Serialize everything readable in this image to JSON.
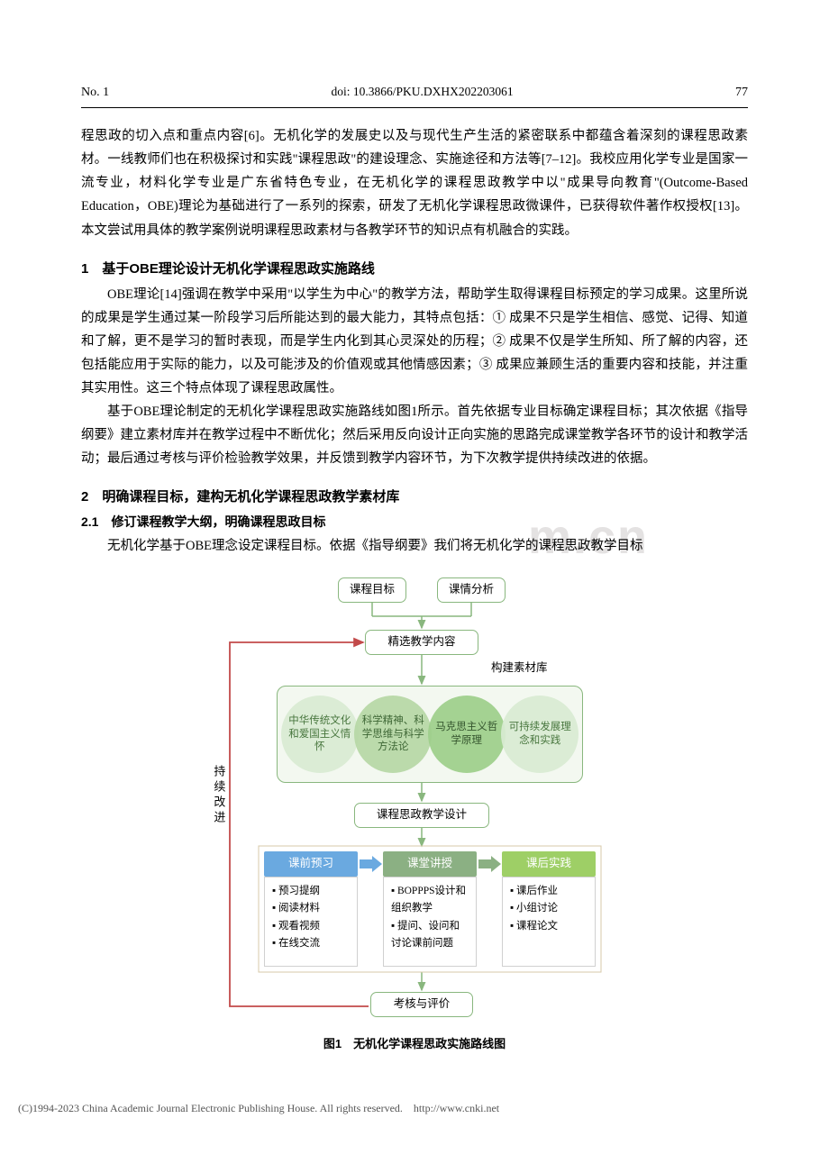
{
  "header": {
    "issue": "No. 1",
    "doi": "doi: 10.3866/PKU.DXHX202203061",
    "page": "77"
  },
  "watermark": "m.cn",
  "para1": "程思政的切入点和重点内容[6]。无机化学的发展史以及与现代生产生活的紧密联系中都蕴含着深刻的课程思政素材。一线教师们也在积极探讨和实践\"课程思政\"的建设理念、实施途径和方法等[7–12]。我校应用化学专业是国家一流专业，材料化学专业是广东省特色专业，在无机化学的课程思政教学中以\"成果导向教育\"(Outcome-Based Education，OBE)理论为基础进行了一系列的探索，研发了无机化学课程思政微课件，已获得软件著作权授权[13]。本文尝试用具体的教学案例说明课程思政素材与各教学环节的知识点有机融合的实践。",
  "section1": {
    "title": "1　基于OBE理论设计无机化学课程思政实施路线",
    "p1": "OBE理论[14]强调在教学中采用\"以学生为中心\"的教学方法，帮助学生取得课程目标预定的学习成果。这里所说的成果是学生通过某一阶段学习后所能达到的最大能力，其特点包括：① 成果不只是学生相信、感觉、记得、知道和了解，更不是学习的暂时表现，而是学生内化到其心灵深处的历程；② 成果不仅是学生所知、所了解的内容，还包括能应用于实际的能力，以及可能涉及的价值观或其他情感因素；③ 成果应兼顾生活的重要内容和技能，并注重其实用性。这三个特点体现了课程思政属性。",
    "p2": "基于OBE理论制定的无机化学课程思政实施路线如图1所示。首先依据专业目标确定课程目标；其次依据《指导纲要》建立素材库并在教学过程中不断优化；然后采用反向设计正向实施的思路完成课堂教学各环节的设计和教学活动；最后通过考核与评价检验教学效果，并反馈到教学内容环节，为下次教学提供持续改进的依据。"
  },
  "section2": {
    "title": "2　明确课程目标，建构无机化学课程思政教学素材库",
    "sub1_title": "2.1　修订课程教学大纲，明确课程思政目标",
    "p1": "无机化学基于OBE理念设定课程目标。依据《指导纲要》我们将无机化学的课程思政教学目标"
  },
  "flowchart": {
    "top_left": "课程目标",
    "top_right": "课情分析",
    "row2": "精选教学内容",
    "row2_side": "构建素材库",
    "ellipses": [
      {
        "label": "中华传统文化和爱国主义情怀",
        "bg": "#d9ecd3",
        "fg": "#3a6b2f"
      },
      {
        "label": "科学精神、科学思维与科学方法论",
        "bg": "#b7d8a6",
        "fg": "#2e5a25"
      },
      {
        "label": "马克思主义哲学原理",
        "bg": "#9ecf8b",
        "fg": "#24471d"
      },
      {
        "label": "可持续发展理念和实践",
        "bg": "#d9ecd3",
        "fg": "#3a6b2f"
      }
    ],
    "ellipse_container_bg": "#f3f8f0",
    "row4": "课程思政教学设计",
    "side_vertical": "持续改进",
    "stages": [
      {
        "header": "课前预习",
        "bg": "#6aa9e0",
        "items": [
          "预习提纲",
          "阅读材料",
          "观看视频",
          "在线交流"
        ]
      },
      {
        "header": "课堂讲授",
        "bg": "#8bb083",
        "items": [
          "BOPPPS设计和组织教学",
          "提问、设问和讨论课前问题"
        ]
      },
      {
        "header": "课后实践",
        "bg": "#9ecf66",
        "items": [
          "课后作业",
          "小组讨论",
          "课程论文"
        ]
      }
    ],
    "arrow_colors": [
      "#6aa9e0",
      "#8bb083"
    ],
    "bottom": "考核与评价",
    "border_color": "#89b77e",
    "outer_border": "#c24a4a",
    "caption": "图1　无机化学课程思政实施路线图"
  },
  "footer": "(C)1994-2023 China Academic Journal Electronic Publishing House. All rights reserved.　http://www.cnki.net"
}
